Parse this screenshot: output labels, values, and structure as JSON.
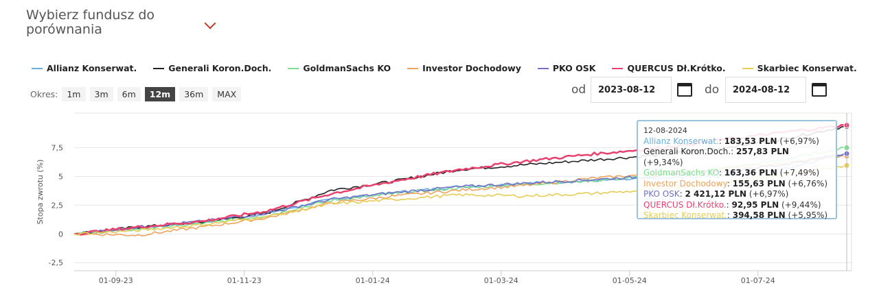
{
  "header": {
    "title": "Wybierz fundusz do porównania"
  },
  "period": {
    "label": "Okres:",
    "options": [
      "1m",
      "3m",
      "6m",
      "12m",
      "36m",
      "MAX"
    ],
    "active": "12m"
  },
  "dates": {
    "from_label": "od",
    "from": "2023-08-12",
    "to_label": "do",
    "to": "2024-08-12"
  },
  "tooltip": {
    "date": "12-08-2024",
    "rows": [
      {
        "name": "Allianz Konserwat.",
        "value": "183,53 PLN",
        "change": "(+6,97%)"
      },
      {
        "name": "Generali Koron.Doch.",
        "value": "257,83 PLN",
        "change": "(+9,34%)"
      },
      {
        "name": "GoldmanSachs KO",
        "value": "163,36 PLN",
        "change": "(+7,49%)"
      },
      {
        "name": "Investor Dochodowy",
        "value": "155,63 PLN",
        "change": "(+6,76%)"
      },
      {
        "name": "PKO OSK",
        "value": "2 421,12 PLN",
        "change": "(+6,97%)"
      },
      {
        "name": "QUERCUS Dł.Krótko.",
        "value": "92,95 PLN",
        "change": "(+9,44%)"
      },
      {
        "name": "Skarbiec Konserwat.",
        "value": "394,58 PLN",
        "change": "(+5,95%)"
      }
    ]
  },
  "chart_data": {
    "type": "line",
    "title": "",
    "xlabel": "",
    "ylabel": "Stopa zwrotu (%)",
    "ylim": [
      -3.2,
      10.5
    ],
    "yticks": [
      -2.5,
      0,
      2.5,
      5,
      7.5
    ],
    "ytick_labels": [
      "-2,5",
      "0",
      "2,5",
      "5",
      "7,5"
    ],
    "xticks_months": [
      0.65,
      2.65,
      4.65,
      6.65,
      8.65,
      10.65
    ],
    "xtick_labels": [
      "01-09-23",
      "01-11-23",
      "01-01-24",
      "01-03-24",
      "01-05-24",
      "01-07-24"
    ],
    "x_months": [
      0,
      1,
      2,
      3,
      4,
      5,
      6,
      7,
      8,
      9,
      10,
      11,
      12
    ],
    "series": [
      {
        "name": "Allianz Konserwat.",
        "color": "#6aaee0",
        "values": [
          0,
          0.5,
          1.0,
          1.8,
          3.0,
          3.6,
          4.1,
          4.4,
          4.6,
          4.8,
          5.0,
          5.6,
          6.97
        ]
      },
      {
        "name": "Generali Koron.Doch.",
        "color": "#222222",
        "values": [
          0,
          0.6,
          1.0,
          1.8,
          3.8,
          4.6,
          5.6,
          6.0,
          6.4,
          6.8,
          7.4,
          8.2,
          9.34
        ]
      },
      {
        "name": "GoldmanSachs KO",
        "color": "#7ddf8f",
        "values": [
          0,
          0.4,
          0.9,
          1.6,
          2.9,
          3.5,
          4.0,
          4.3,
          4.6,
          5.0,
          5.6,
          6.4,
          7.49
        ]
      },
      {
        "name": "Investor Dochodowy",
        "color": "#f0a35e",
        "values": [
          0,
          -0.1,
          0.6,
          1.4,
          2.7,
          3.3,
          3.8,
          4.2,
          4.8,
          5.2,
          5.6,
          6.1,
          6.76
        ]
      },
      {
        "name": "PKO OSK",
        "color": "#7070c8",
        "values": [
          0,
          0.6,
          1.1,
          1.8,
          3.0,
          3.6,
          4.1,
          4.4,
          4.7,
          5.0,
          5.4,
          6.0,
          6.97
        ]
      },
      {
        "name": "QUERCUS Dł.Krótko.",
        "color": "#e8416e",
        "values": [
          0,
          0.6,
          1.1,
          2.0,
          3.5,
          4.6,
          5.6,
          6.3,
          6.9,
          7.4,
          8.1,
          8.8,
          9.44
        ]
      },
      {
        "name": "Skarbiec Konserwat.",
        "color": "#e8cc55",
        "values": [
          0,
          0.3,
          0.8,
          1.5,
          2.6,
          3.0,
          3.4,
          3.3,
          3.5,
          3.8,
          4.4,
          5.1,
          5.95
        ]
      }
    ]
  }
}
